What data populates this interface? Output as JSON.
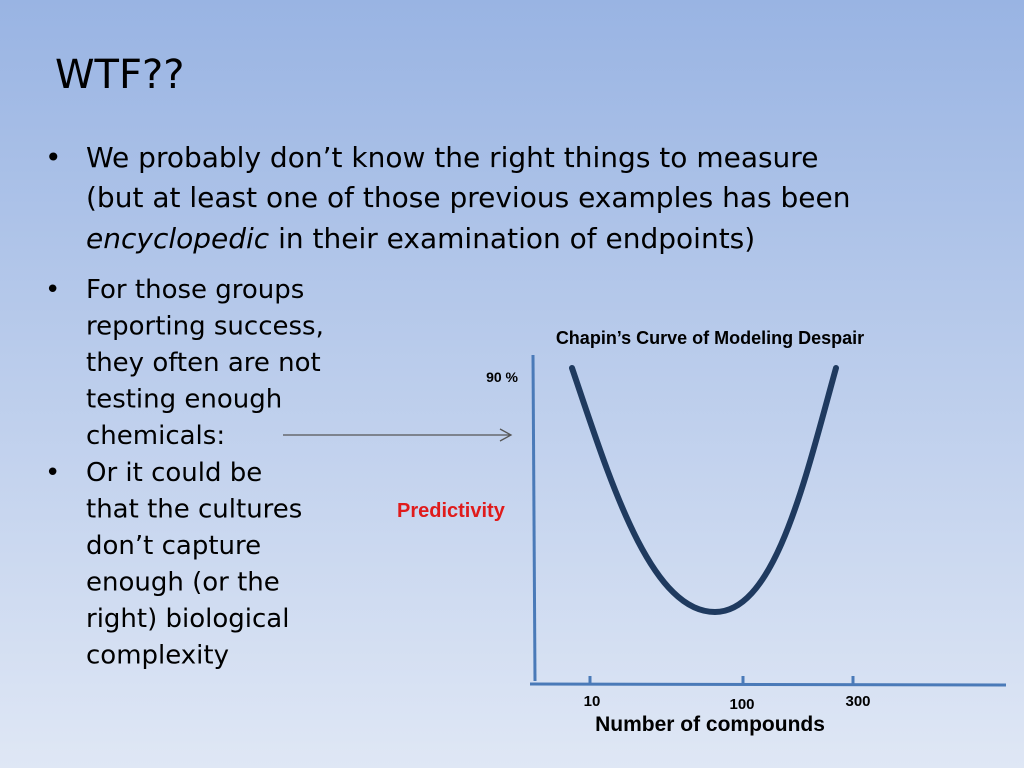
{
  "slide": {
    "title": "WTF??",
    "bullets": [
      {
        "marker": "•",
        "lines": [
          "We probably don’t know the right things to measure",
          "(but at least one of those previous examples has been"
        ],
        "last_line": [
          "encyclopedic",
          " in their examination of endpoints)"
        ]
      },
      {
        "marker": "•",
        "lines": [
          "For those groups",
          "reporting success,",
          "they often are not",
          "testing enough",
          "chemicals:"
        ]
      },
      {
        "marker": "•",
        "lines": [
          "Or it could be",
          "that the cultures",
          "don’t capture",
          "enough  (or the",
          "right) biological",
          "complexity"
        ]
      }
    ],
    "diagram": {
      "title": "Chapin’s Curve of Modeling Despair",
      "y_label": "Predictivity",
      "y_tick": "90 %",
      "x_ticks": [
        "10",
        "100",
        "300"
      ],
      "x_label": "Number of compounds"
    }
  }
}
